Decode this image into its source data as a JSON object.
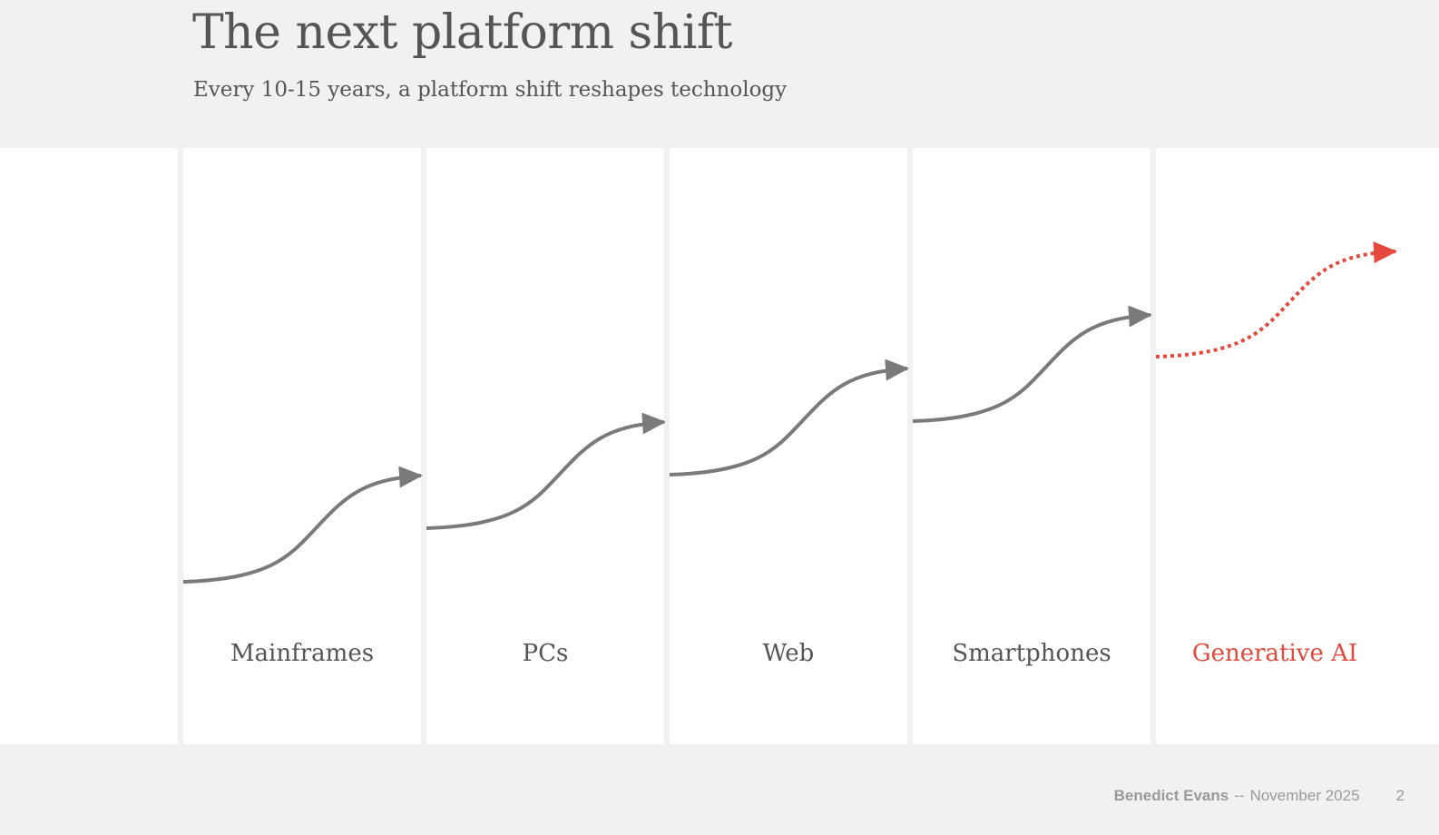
{
  "slide": {
    "title": "The next platform shift",
    "subtitle": "Every 10-15 years, a platform shift reshapes technology"
  },
  "eras": [
    {
      "label": "Mainframes",
      "highlight": false
    },
    {
      "label": "PCs",
      "highlight": false
    },
    {
      "label": "Web",
      "highlight": false
    },
    {
      "label": "Smartphones",
      "highlight": false
    },
    {
      "label": "Generative AI",
      "highlight": true
    }
  ],
  "colors": {
    "curve": "#7a7a7a",
    "highlight": "#e34a3d",
    "background": "#f1f1f1",
    "panel": "#ffffff"
  },
  "footer": {
    "author": "Benedict Evans",
    "separator": "--",
    "date": "November 2025",
    "page": "2"
  }
}
